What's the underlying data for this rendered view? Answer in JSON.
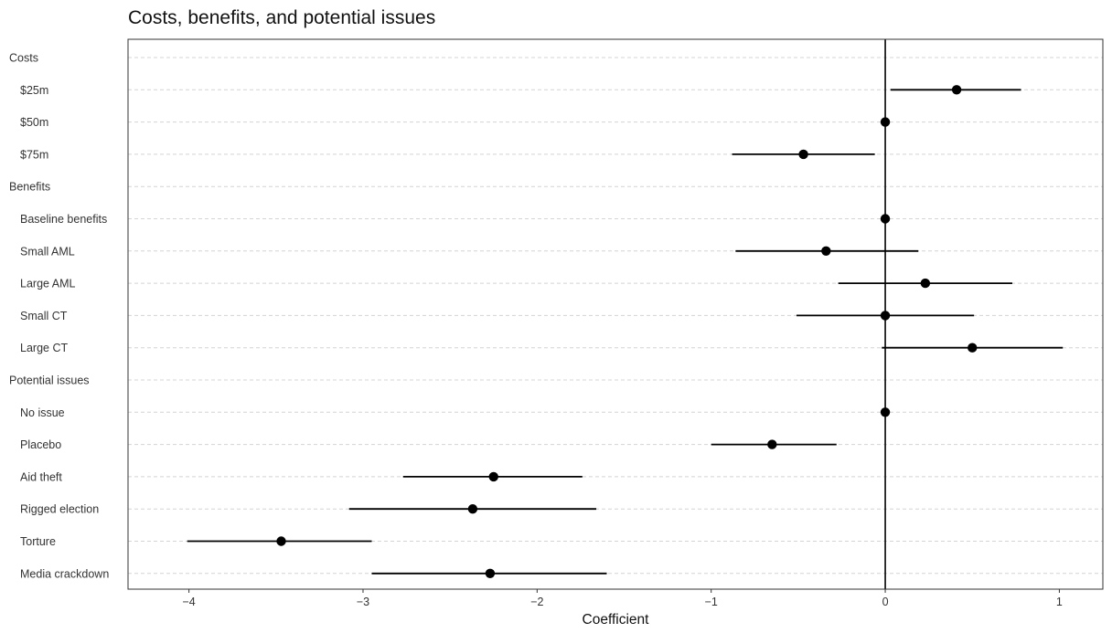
{
  "chart_data": {
    "type": "scatter",
    "title": "Costs, benefits, and potential issues",
    "xlabel": "Coefficient",
    "ylabel": "",
    "xlim": [
      -4.35,
      1.25
    ],
    "xticks": [
      {
        "value": -4,
        "label": "−4"
      },
      {
        "value": -3,
        "label": "−3"
      },
      {
        "value": -2,
        "label": "−2"
      },
      {
        "value": -1,
        "label": "−1"
      },
      {
        "value": 0,
        "label": "0"
      },
      {
        "value": 1,
        "label": "1"
      }
    ],
    "grid": true,
    "rows": [
      {
        "label": "Costs",
        "header": true
      },
      {
        "label": "$25m",
        "estimate": 0.41,
        "low": 0.03,
        "high": 0.78
      },
      {
        "label": "$50m",
        "estimate": 0.0,
        "low": 0.0,
        "high": 0.0
      },
      {
        "label": "$75m",
        "estimate": -0.47,
        "low": -0.88,
        "high": -0.06
      },
      {
        "label": "Benefits",
        "header": true
      },
      {
        "label": "Baseline benefits",
        "estimate": 0.0,
        "low": 0.0,
        "high": 0.0
      },
      {
        "label": "Small AML",
        "estimate": -0.34,
        "low": -0.86,
        "high": 0.19
      },
      {
        "label": "Large AML",
        "estimate": 0.23,
        "low": -0.27,
        "high": 0.73
      },
      {
        "label": "Small CT",
        "estimate": 0.0,
        "low": -0.51,
        "high": 0.51
      },
      {
        "label": "Large CT",
        "estimate": 0.5,
        "low": -0.02,
        "high": 1.02
      },
      {
        "label": "Potential issues",
        "header": true
      },
      {
        "label": "No issue",
        "estimate": 0.0,
        "low": 0.0,
        "high": 0.0
      },
      {
        "label": "Placebo",
        "estimate": -0.65,
        "low": -1.0,
        "high": -0.28
      },
      {
        "label": "Aid theft",
        "estimate": -2.25,
        "low": -2.77,
        "high": -1.74
      },
      {
        "label": "Rigged election",
        "estimate": -2.37,
        "low": -3.08,
        "high": -1.66
      },
      {
        "label": "Torture",
        "estimate": -3.47,
        "low": -4.01,
        "high": -2.95
      },
      {
        "label": "Media crackdown",
        "estimate": -2.27,
        "low": -2.95,
        "high": -1.6
      }
    ]
  }
}
